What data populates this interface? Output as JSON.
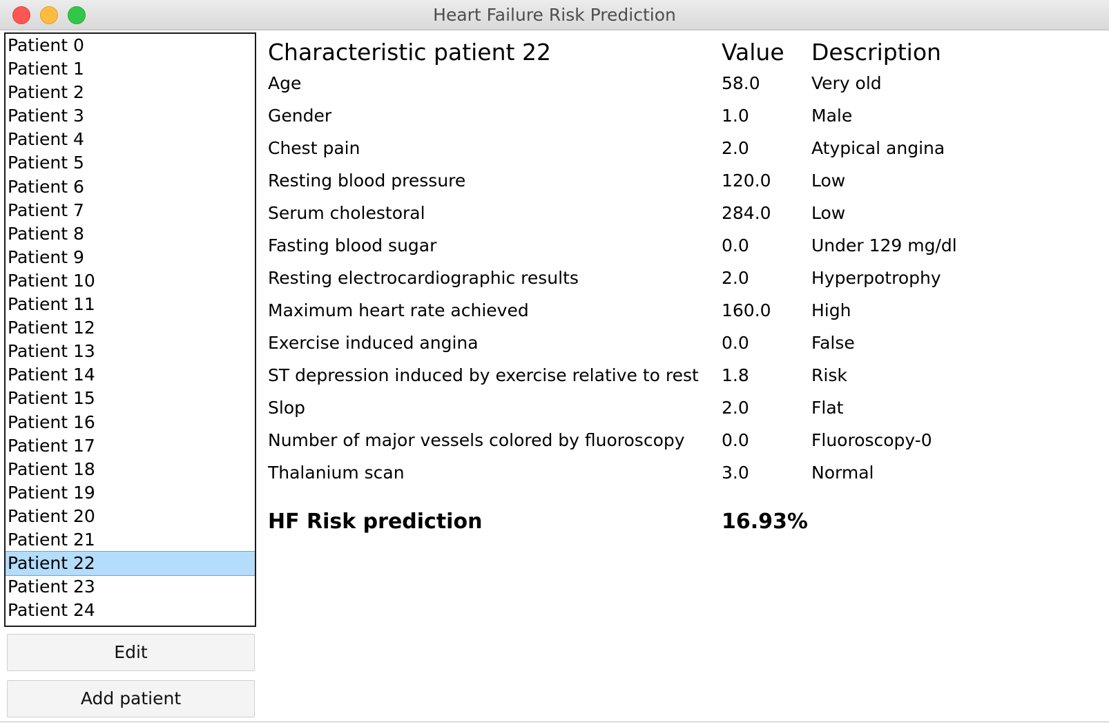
{
  "window": {
    "title": "Heart Failure Risk Prediction"
  },
  "patients": [
    "Patient 0",
    "Patient 1",
    "Patient 2",
    "Patient 3",
    "Patient 4",
    "Patient 5",
    "Patient 6",
    "Patient 7",
    "Patient 8",
    "Patient 9",
    "Patient 10",
    "Patient 11",
    "Patient 12",
    "Patient 13",
    "Patient 14",
    "Patient 15",
    "Patient 16",
    "Patient 17",
    "Patient 18",
    "Patient 19",
    "Patient 20",
    "Patient 21",
    "Patient 22",
    "Patient 23",
    "Patient 24"
  ],
  "selected_patient": "Patient 22",
  "buttons": {
    "edit": "Edit",
    "add_patient": "Add patient"
  },
  "table": {
    "headers": {
      "characteristic": "Characteristic patient 22",
      "value": "Value",
      "description": "Description"
    },
    "rows": [
      {
        "label": "Age",
        "value": "58.0",
        "description": "Very old"
      },
      {
        "label": "Gender",
        "value": "1.0",
        "description": "Male"
      },
      {
        "label": "Chest pain",
        "value": "2.0",
        "description": "Atypical angina"
      },
      {
        "label": "Resting blood pressure",
        "value": "120.0",
        "description": "Low"
      },
      {
        "label": "Serum cholestoral",
        "value": "284.0",
        "description": "Low"
      },
      {
        "label": "Fasting blood sugar",
        "value": "0.0",
        "description": "Under 129 mg/dl"
      },
      {
        "label": "Resting electrocardiographic results",
        "value": "2.0",
        "description": "Hyperpotrophy"
      },
      {
        "label": "Maximum heart rate achieved",
        "value": "160.0",
        "description": "High"
      },
      {
        "label": "Exercise induced angina",
        "value": "0.0",
        "description": "False"
      },
      {
        "label": "ST depression induced by exercise relative to rest",
        "value": "1.8",
        "description": "Risk"
      },
      {
        "label": "Slop",
        "value": "2.0",
        "description": "Flat"
      },
      {
        "label": "Number of major vessels colored by fluoroscopy",
        "value": "0.0",
        "description": "Fluoroscopy-0"
      },
      {
        "label": "Thalanium scan",
        "value": "3.0",
        "description": "Normal"
      }
    ]
  },
  "risk": {
    "label": "HF Risk prediction",
    "value": "16.93%"
  },
  "colors": {
    "selection": "#b4dcfb",
    "close": "#fc5753",
    "minimize": "#fdbc40",
    "maximize": "#33c748"
  }
}
